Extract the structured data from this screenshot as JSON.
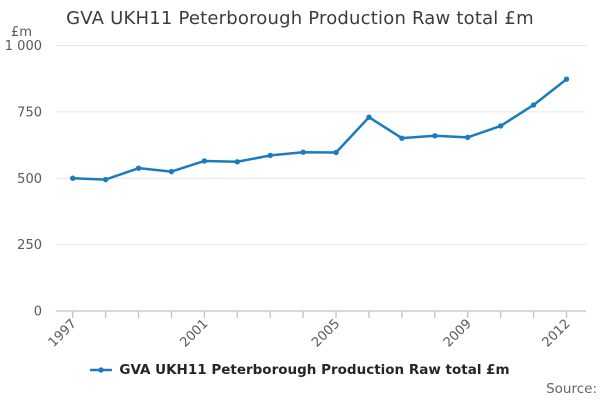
{
  "title": "GVA UKH11 Peterborough Production Raw total £m",
  "legend": {
    "label": "GVA UKH11 Peterborough Production Raw total £m"
  },
  "footer": {
    "source_label": "Source:"
  },
  "axes": {
    "y_unit_label": "£m",
    "y_tick_labels": [
      "0",
      "250",
      "500",
      "750",
      "1 000"
    ],
    "y_tick_values": [
      0,
      250,
      500,
      750,
      1000
    ],
    "x_labeled_years": [
      1997,
      2001,
      2005,
      2009,
      2012
    ]
  },
  "colors": {
    "line": "#1a7cbf",
    "axis": "#b7c3da",
    "grid": "#e6e6e6",
    "tick_text": "#595959",
    "title_text": "#3c3c3c",
    "legend_text": "#262626",
    "source_text": "#666666"
  },
  "chart_data": {
    "type": "line",
    "title": "GVA UKH11 Peterborough Production Raw total £m",
    "xlabel": "",
    "ylabel": "£m",
    "ylim": [
      0,
      1000
    ],
    "y_tick_step": 250,
    "grid": "horizontal",
    "legend_position": "bottom",
    "x": [
      1997,
      1998,
      1999,
      2000,
      2001,
      2002,
      2003,
      2004,
      2005,
      2006,
      2007,
      2008,
      2009,
      2010,
      2011,
      2012
    ],
    "x_labeled_ticks": [
      1997,
      2001,
      2005,
      2009,
      2012
    ],
    "series": [
      {
        "name": "GVA UKH11 Peterborough Production Raw total £m",
        "values": [
          500,
          495,
          538,
          525,
          565,
          562,
          586,
          598,
          597,
          730,
          651,
          660,
          654,
          697,
          776,
          873
        ]
      }
    ]
  }
}
